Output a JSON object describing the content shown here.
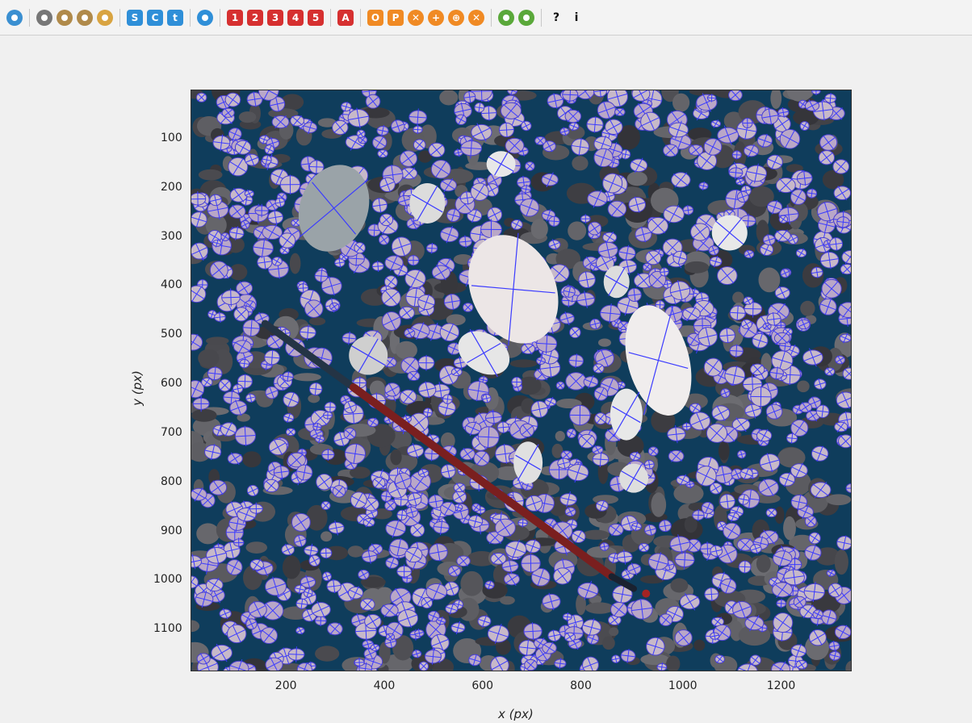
{
  "toolbar": {
    "buttons": [
      {
        "name": "open-folder-button",
        "label": "",
        "color": "#3a8fd1",
        "shape": "round",
        "icon": "folder-icon"
      },
      {
        "sep": true
      },
      {
        "name": "globe-button",
        "label": "",
        "color": "#777777",
        "shape": "round",
        "icon": "globe-icon"
      },
      {
        "name": "zoom-in-button",
        "label": "",
        "color": "#b08a4a",
        "shape": "round",
        "icon": "magnifier-plus-icon"
      },
      {
        "name": "zoom-out-button",
        "label": "",
        "color": "#b08a4a",
        "shape": "round",
        "icon": "magnifier-minus-icon"
      },
      {
        "name": "pan-button",
        "label": "",
        "color": "#d9a441",
        "shape": "round",
        "icon": "hand-icon"
      },
      {
        "sep": true
      },
      {
        "name": "s-button",
        "label": "S",
        "color": "#2f8fd8",
        "shape": "square",
        "icon": "letter-s-icon"
      },
      {
        "name": "c-button",
        "label": "C",
        "color": "#2f8fd8",
        "shape": "square",
        "icon": "letter-c-icon"
      },
      {
        "name": "t-button",
        "label": "t",
        "color": "#2f8fd8",
        "shape": "square",
        "icon": "letter-t-icon"
      },
      {
        "sep": true
      },
      {
        "name": "flask-button",
        "label": "",
        "color": "#2f8fd8",
        "shape": "round",
        "icon": "flask-icon"
      },
      {
        "sep": true
      },
      {
        "name": "one-button",
        "label": "1",
        "color": "#d63030",
        "shape": "square",
        "icon": "number-1-icon"
      },
      {
        "name": "two-button",
        "label": "2",
        "color": "#d63030",
        "shape": "square",
        "icon": "number-2-icon"
      },
      {
        "name": "three-button",
        "label": "3",
        "color": "#d63030",
        "shape": "square",
        "icon": "number-3-icon"
      },
      {
        "name": "four-button",
        "label": "4",
        "color": "#d63030",
        "shape": "square",
        "icon": "number-4-icon"
      },
      {
        "name": "five-button",
        "label": "5",
        "color": "#d63030",
        "shape": "square",
        "icon": "number-5-icon"
      },
      {
        "sep": true
      },
      {
        "name": "a-button",
        "label": "A",
        "color": "#d63030",
        "shape": "square",
        "icon": "letter-a-icon"
      },
      {
        "sep": true
      },
      {
        "name": "o-button",
        "label": "O",
        "color": "#f08a24",
        "shape": "square",
        "icon": "letter-o-icon"
      },
      {
        "name": "p-button",
        "label": "P",
        "color": "#f08a24",
        "shape": "square",
        "icon": "letter-p-icon"
      },
      {
        "name": "orange-x-button",
        "label": "✕",
        "color": "#f08a24",
        "shape": "round",
        "icon": "cross-icon"
      },
      {
        "name": "orange-plus-button",
        "label": "+",
        "color": "#f08a24",
        "shape": "round",
        "icon": "plus-icon"
      },
      {
        "name": "orange-crosshair-button",
        "label": "⊕",
        "color": "#f08a24",
        "shape": "round",
        "icon": "crosshair-icon"
      },
      {
        "name": "orange-close-button",
        "label": "✕",
        "color": "#f08a24",
        "shape": "round",
        "icon": "close-icon"
      },
      {
        "sep": true
      },
      {
        "name": "chart-button",
        "label": "",
        "color": "#5aa83a",
        "shape": "round",
        "icon": "bar-chart-icon"
      },
      {
        "name": "save-button",
        "label": "",
        "color": "#5aa83a",
        "shape": "round",
        "icon": "save-icon"
      },
      {
        "sep": true
      },
      {
        "name": "help-button",
        "label": "?",
        "color": "transparent",
        "shape": "plain",
        "icon": "question-icon"
      },
      {
        "name": "info-button",
        "label": "i",
        "color": "transparent",
        "shape": "plain",
        "icon": "info-icon"
      }
    ]
  },
  "plot": {
    "xlabel": "x (px)",
    "ylabel": "y (px)",
    "xticks": [
      200,
      400,
      600,
      800,
      1000,
      1200
    ],
    "yticks": [
      100,
      200,
      300,
      400,
      500,
      600,
      700,
      800,
      900,
      1000,
      1100
    ]
  }
}
